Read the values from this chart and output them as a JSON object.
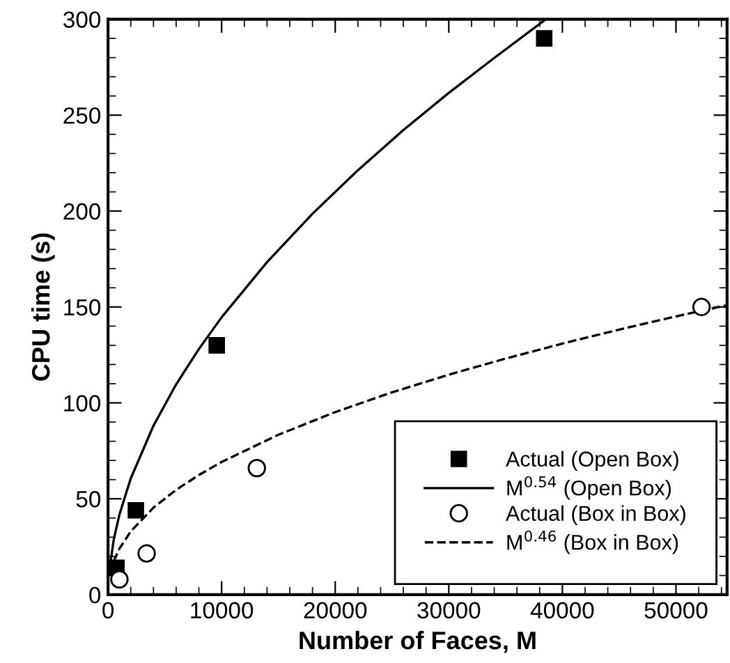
{
  "chart_data": {
    "type": "scatter",
    "xlabel": "Number of Faces, M",
    "ylabel": "CPU time (s)",
    "xlim": [
      0,
      54500
    ],
    "ylim": [
      0,
      300
    ],
    "xticks": [
      0,
      10000,
      20000,
      30000,
      40000,
      50000
    ],
    "yticks": [
      0,
      50,
      100,
      150,
      200,
      250,
      300
    ],
    "grid": false,
    "legend": "bottom right",
    "series": [
      {
        "name": "Actual (Open Box)",
        "marker": "square",
        "color": "#000000",
        "x": [
          740,
          2450,
          9570,
          38400
        ],
        "values": [
          14,
          44,
          130,
          290
        ]
      },
      {
        "name": "M$^{0.54}$ (Open Box)",
        "type": "line",
        "marker": "none",
        "line_style": "solid",
        "color": "#000000",
        "x": [
          100,
          500,
          1000,
          2000,
          4000,
          6000,
          8000,
          10000,
          14000,
          18000,
          22000,
          26000,
          30000,
          34000,
          38550
        ],
        "values": [
          12,
          28.7,
          41.7,
          60.6,
          88.1,
          109.7,
          128.1,
          144.6,
          173.4,
          198.6,
          221.3,
          242.2,
          261.6,
          279.8,
          300
        ]
      },
      {
        "name": "Actual (Box in Box)",
        "marker": "circle",
        "color": "#000000",
        "x": [
          1000,
          3400,
          13100,
          52250
        ],
        "values": [
          8,
          21.5,
          66,
          150
        ]
      },
      {
        "name": "M$^{0.46}$ (Box in Box)",
        "type": "line",
        "marker": "none",
        "line_style": "dashed",
        "color": "#000000",
        "x": [
          500,
          1000,
          2000,
          4000,
          6000,
          8000,
          10000,
          15000,
          20000,
          25000,
          30000,
          35000,
          40000,
          45000,
          50000,
          54500
        ],
        "values": [
          17.4,
          24.0,
          33.0,
          45.4,
          54.7,
          62.4,
          69.2,
          83.4,
          95.2,
          105.5,
          114.7,
          123.1,
          130.9,
          138.2,
          145.1,
          150.9
        ]
      }
    ]
  }
}
